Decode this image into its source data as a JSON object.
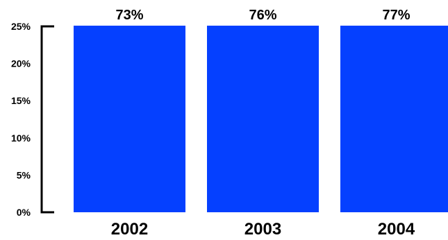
{
  "chart_data": {
    "type": "bar",
    "categories": [
      "2002",
      "2003",
      "2004"
    ],
    "values": [
      73,
      76,
      77
    ],
    "data_labels": [
      "73%",
      "76%",
      "77%"
    ],
    "yticks": [
      "0%",
      "5%",
      "10%",
      "15%",
      "20%",
      "25%"
    ],
    "ylim": [
      0,
      25
    ],
    "bars_exceed_axis": true,
    "title": "",
    "xlabel": "",
    "ylabel": "",
    "grid": false,
    "colors": {
      "bar": "#0540FF",
      "axis": "#000000",
      "text": "#000000"
    }
  }
}
